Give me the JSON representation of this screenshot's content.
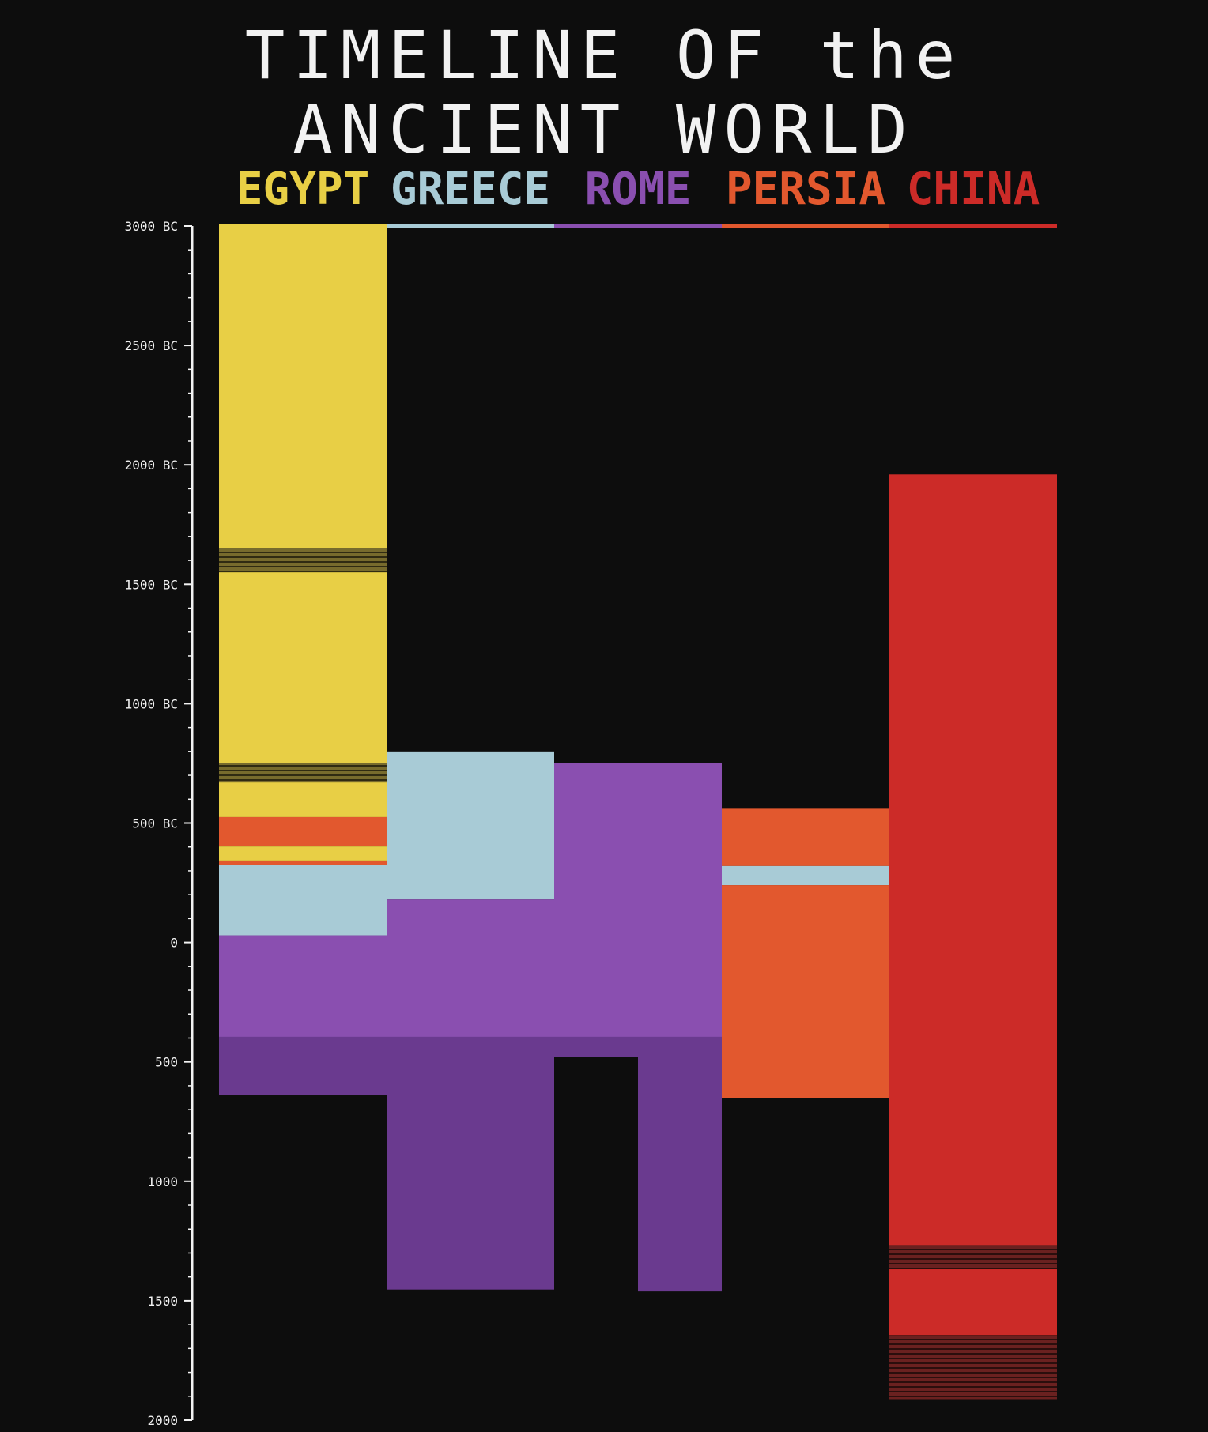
{
  "title_lines": [
    "TIMELINE OF the",
    "ANCIENT WORLD"
  ],
  "colors": {
    "background": "#0d0d0d",
    "axis": "#f2f2f2",
    "hatch": "#1a1a1a"
  },
  "chart_data": {
    "type": "bar",
    "orientation": "vertical-timeline",
    "title": "TIMELINE OF the ANCIENT WORLD",
    "yaxis": {
      "min": -3000,
      "max": 2000,
      "tick_labels": [
        "3000 BC",
        "2500 BC",
        "2000 BC",
        "1500 BC",
        "1000 BC",
        "500 BC",
        "0",
        "500",
        "1000",
        "1500",
        "2000"
      ],
      "tick_values": [
        -3000,
        -2500,
        -2000,
        -1500,
        -1000,
        -500,
        0,
        500,
        1000,
        1500,
        2000
      ]
    },
    "categories": [
      {
        "name": "EGYPT",
        "color": "#e8cf45"
      },
      {
        "name": "GREECE",
        "color": "#a8cbd6"
      },
      {
        "name": "ROME",
        "color": "#8a4fb0"
      },
      {
        "name": "PERSIA",
        "color": "#e2582e"
      },
      {
        "name": "CHINA",
        "color": "#cc2b28"
      }
    ],
    "blocks": [
      {
        "column": 0,
        "from": -3000,
        "to": -1650,
        "color": "#e8cf45"
      },
      {
        "column": 0,
        "from": -1650,
        "to": -1550,
        "color": "#e8cf45",
        "hatched": true
      },
      {
        "column": 0,
        "from": -1550,
        "to": -750,
        "color": "#e8cf45"
      },
      {
        "column": 0,
        "from": -750,
        "to": -670,
        "color": "#e8cf45",
        "hatched": true
      },
      {
        "column": 0,
        "from": -670,
        "to": -525,
        "color": "#e8cf45"
      },
      {
        "column": 0,
        "from": -525,
        "to": -402,
        "color": "#e2582e"
      },
      {
        "column": 0,
        "from": -402,
        "to": -343,
        "color": "#e8cf45"
      },
      {
        "column": 0,
        "from": -343,
        "to": -323,
        "color": "#e2582e"
      },
      {
        "column": 0,
        "from": -323,
        "to": -30,
        "color": "#a8cbd6"
      },
      {
        "column": 0,
        "from": -30,
        "to": 395,
        "color": "#8a4fb0"
      },
      {
        "column": 0,
        "from": 395,
        "to": 640,
        "color": "#6a3a8f"
      },
      {
        "column": 1,
        "from": -800,
        "to": -180,
        "color": "#a8cbd6"
      },
      {
        "column": 1,
        "from": -180,
        "to": 395,
        "color": "#8a4fb0"
      },
      {
        "column": 1,
        "from": 395,
        "to": 1453,
        "color": "#6a3a8f"
      },
      {
        "column": 2,
        "from": -753,
        "to": 395,
        "color": "#8a4fb0"
      },
      {
        "column": 2,
        "from": 395,
        "to": 480,
        "color": "#6a3a8f"
      },
      {
        "column": 2.5,
        "from": 480,
        "to": 1461,
        "color": "#6a3a8f",
        "half": "right"
      },
      {
        "column": 3,
        "from": -560,
        "to": -320,
        "color": "#e2582e"
      },
      {
        "column": 3,
        "from": -320,
        "to": -240,
        "color": "#a8cbd6"
      },
      {
        "column": 3,
        "from": -240,
        "to": 651,
        "color": "#e2582e"
      },
      {
        "column": 4,
        "from": -1960,
        "to": 1270,
        "color": "#cc2b28"
      },
      {
        "column": 4,
        "from": 1270,
        "to": 1368,
        "color": "#cc2b28",
        "hatched": true
      },
      {
        "column": 4,
        "from": 1368,
        "to": 1644,
        "color": "#cc2b28"
      },
      {
        "column": 4,
        "from": 1644,
        "to": 1912,
        "color": "#cc2b28",
        "hatched": true
      }
    ],
    "grid": false,
    "legend": "top"
  }
}
